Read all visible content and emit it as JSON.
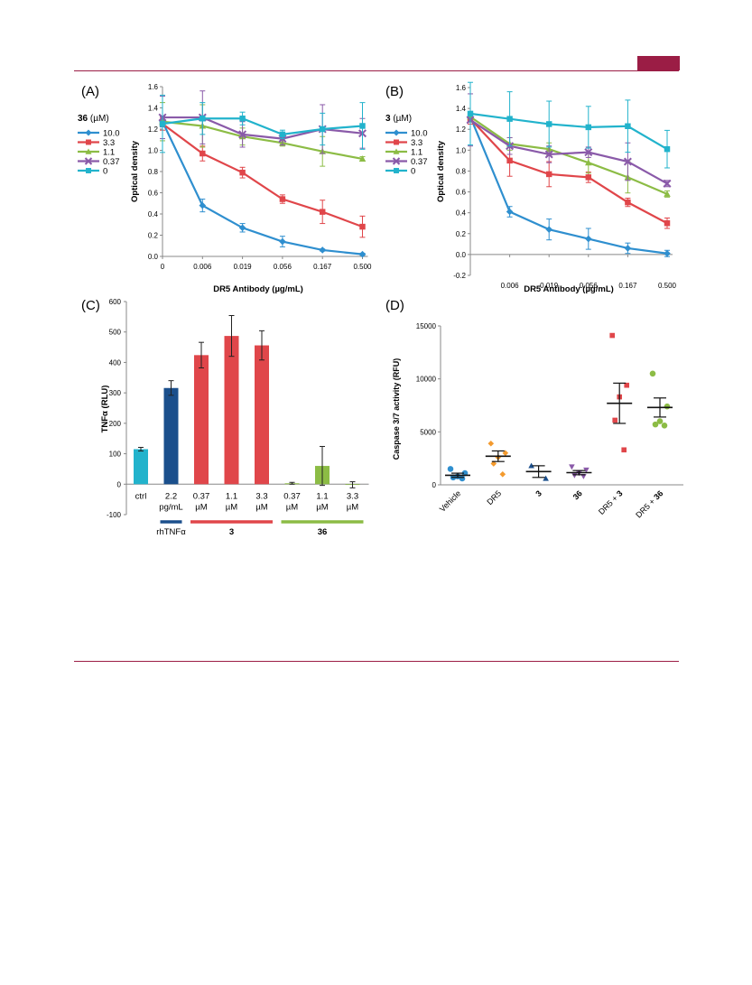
{
  "colors": {
    "rule": "#9b1d45",
    "blue": "#2f8fcf",
    "red": "#e0464a",
    "green": "#8cbc45",
    "purple": "#8a5aa9",
    "cyan": "#22b3cc",
    "navy": "#1b4f8c",
    "orange": "#f39a2e"
  },
  "chart_data": [
    {
      "panel": "(A)",
      "type": "line",
      "legend_title_bold": "36",
      "legend_title_unit": " (µM)",
      "xlabel": "DR5 Antibody (µg/mL)",
      "ylabel": "Optical density",
      "x_categories": [
        "0",
        "0.006",
        "0.019",
        "0.056",
        "0.167",
        "0.500"
      ],
      "ylim": [
        0,
        1.6
      ],
      "yticks": [
        "0.0",
        "0.2",
        "0.4",
        "0.6",
        "0.8",
        "1.0",
        "1.2",
        "1.4",
        "1.6"
      ],
      "legend_placement": "left",
      "series": [
        {
          "name": "10.0",
          "color_key": "blue",
          "marker": "diamond",
          "values": [
            1.27,
            0.48,
            0.27,
            0.14,
            0.06,
            0.02
          ],
          "errors": [
            0.05,
            0.06,
            0.04,
            0.05,
            0.01,
            0.01
          ]
        },
        {
          "name": "3.3",
          "color_key": "red",
          "marker": "square",
          "values": [
            1.25,
            0.97,
            0.79,
            0.54,
            0.42,
            0.28
          ],
          "errors": [
            0.06,
            0.07,
            0.05,
            0.04,
            0.11,
            0.1
          ]
        },
        {
          "name": "1.1",
          "color_key": "green",
          "marker": "triangle",
          "values": [
            1.27,
            1.23,
            1.13,
            1.07,
            0.99,
            0.92
          ],
          "errors": [
            0.18,
            0.2,
            0.08,
            0.03,
            0.14,
            0.02
          ]
        },
        {
          "name": "0.37",
          "color_key": "purple",
          "marker": "cross",
          "values": [
            1.31,
            1.31,
            1.15,
            1.11,
            1.2,
            1.16
          ],
          "errors": [
            0.2,
            0.25,
            0.12,
            0.06,
            0.23,
            0.14
          ]
        },
        {
          "name": "0",
          "color_key": "cyan",
          "marker": "square",
          "values": [
            1.25,
            1.3,
            1.3,
            1.15,
            1.2,
            1.23
          ],
          "errors": [
            0.27,
            0.15,
            0.06,
            0.04,
            0.15,
            0.22
          ]
        }
      ]
    },
    {
      "panel": "(B)",
      "type": "line",
      "legend_title_bold": "3",
      "legend_title_unit": " (µM)",
      "xlabel": "DR5 Antibody (µg/mL)",
      "ylabel": "Optical density",
      "x_categories": [
        "",
        "0.006",
        "0.019",
        "0.056",
        "0.167",
        "0.500"
      ],
      "ylim": [
        -0.2,
        1.6
      ],
      "yticks": [
        "-0.2",
        "0.0",
        "0.2",
        "0.4",
        "0.6",
        "0.8",
        "1.0",
        "1.2",
        "1.4",
        "1.6"
      ],
      "legend_placement": "left",
      "series": [
        {
          "name": "10.0",
          "color_key": "blue",
          "marker": "diamond",
          "values": [
            1.32,
            0.41,
            0.24,
            0.15,
            0.06,
            0.01
          ],
          "errors": [
            0.05,
            0.05,
            0.1,
            0.1,
            0.05,
            0.03
          ]
        },
        {
          "name": "3.3",
          "color_key": "red",
          "marker": "square",
          "values": [
            1.3,
            0.9,
            0.77,
            0.74,
            0.5,
            0.3
          ],
          "errors": [
            0.05,
            0.15,
            0.12,
            0.05,
            0.04,
            0.05
          ]
        },
        {
          "name": "1.1",
          "color_key": "green",
          "marker": "triangle",
          "values": [
            1.32,
            1.06,
            1.01,
            0.88,
            0.74,
            0.58
          ],
          "errors": [
            0.05,
            0.06,
            0.06,
            0.1,
            0.15,
            0.03
          ]
        },
        {
          "name": "0.37",
          "color_key": "purple",
          "marker": "cross",
          "values": [
            1.29,
            1.04,
            0.96,
            0.98,
            0.89,
            0.68
          ],
          "errors": [
            0.25,
            0.08,
            0.08,
            0.05,
            0.18,
            0.03
          ]
        },
        {
          "name": "0",
          "color_key": "cyan",
          "marker": "square",
          "values": [
            1.35,
            1.3,
            1.25,
            1.22,
            1.23,
            1.01
          ],
          "errors": [
            0.3,
            0.26,
            0.22,
            0.2,
            0.25,
            0.18
          ]
        }
      ]
    },
    {
      "panel": "(C)",
      "type": "bar",
      "ylabel": "TNFα (RLU)",
      "ylim": [
        -100,
        600
      ],
      "yticks": [
        "-100",
        "0",
        "100",
        "200",
        "300",
        "400",
        "500",
        "600"
      ],
      "categories": [
        [
          "ctrl",
          ""
        ],
        [
          "2.2",
          "pg/mL"
        ],
        [
          "0.37",
          "µM"
        ],
        [
          "1.1",
          "µM"
        ],
        [
          "3.3",
          "µM"
        ],
        [
          "0.37",
          "µM"
        ],
        [
          "1.1",
          "µM"
        ],
        [
          "3.3",
          "µM"
        ]
      ],
      "values": [
        115,
        316,
        424,
        487,
        456,
        3,
        60,
        -2
      ],
      "errors": [
        6,
        24,
        42,
        67,
        48,
        3,
        64,
        10
      ],
      "bar_color_keys": [
        "cyan",
        "navy",
        "red",
        "red",
        "red",
        "green",
        "green",
        "green"
      ],
      "groups": [
        {
          "label": "rhTNFα",
          "bold": false,
          "color_key": "navy",
          "from": 1,
          "to": 1
        },
        {
          "label": "3",
          "bold": true,
          "color_key": "red",
          "from": 2,
          "to": 4
        },
        {
          "label": "36",
          "bold": true,
          "color_key": "green",
          "from": 5,
          "to": 7
        }
      ]
    },
    {
      "panel": "(D)",
      "type": "scatter",
      "ylabel": "Caspase 3/7 activity (RFU)",
      "ylim": [
        0,
        15000
      ],
      "yticks": [
        "0",
        "5000",
        "10000",
        "15000"
      ],
      "categories": [
        {
          "parts": [
            {
              "t": "Vehicle",
              "b": false
            }
          ]
        },
        {
          "parts": [
            {
              "t": "DR5",
              "b": false
            }
          ]
        },
        {
          "parts": [
            {
              "t": "3",
              "b": true
            }
          ]
        },
        {
          "parts": [
            {
              "t": "36",
              "b": true
            }
          ]
        },
        {
          "parts": [
            {
              "t": "DR5 + ",
              "b": false
            },
            {
              "t": "3",
              "b": true
            }
          ]
        },
        {
          "parts": [
            {
              "t": "DR5 + ",
              "b": false
            },
            {
              "t": "36",
              "b": true
            }
          ]
        }
      ],
      "groups": [
        {
          "color_key": "blue",
          "marker": "circle",
          "points": [
            1500,
            1100,
            800,
            700,
            600
          ],
          "mean": 900,
          "sem": 200
        },
        {
          "color_key": "orange",
          "marker": "diamond",
          "points": [
            3900,
            3000,
            2600,
            2000,
            1000
          ],
          "mean": 2700,
          "sem": 500
        },
        {
          "color_key": "navy",
          "marker": "triangle",
          "points": [
            1800,
            600
          ],
          "mean": 1250,
          "sem": 550
        },
        {
          "color_key": "purple",
          "marker": "triangle-down",
          "points": [
            1700,
            1400,
            1100,
            900,
            800
          ],
          "mean": 1150,
          "sem": 200
        },
        {
          "color_key": "red",
          "marker": "square",
          "points": [
            14100,
            9400,
            8300,
            6100,
            3300
          ],
          "mean": 7700,
          "sem": 1900
        },
        {
          "color_key": "green",
          "marker": "circle",
          "points": [
            10500,
            7400,
            6000,
            5700,
            5600
          ],
          "mean": 7300,
          "sem": 900
        }
      ]
    }
  ]
}
